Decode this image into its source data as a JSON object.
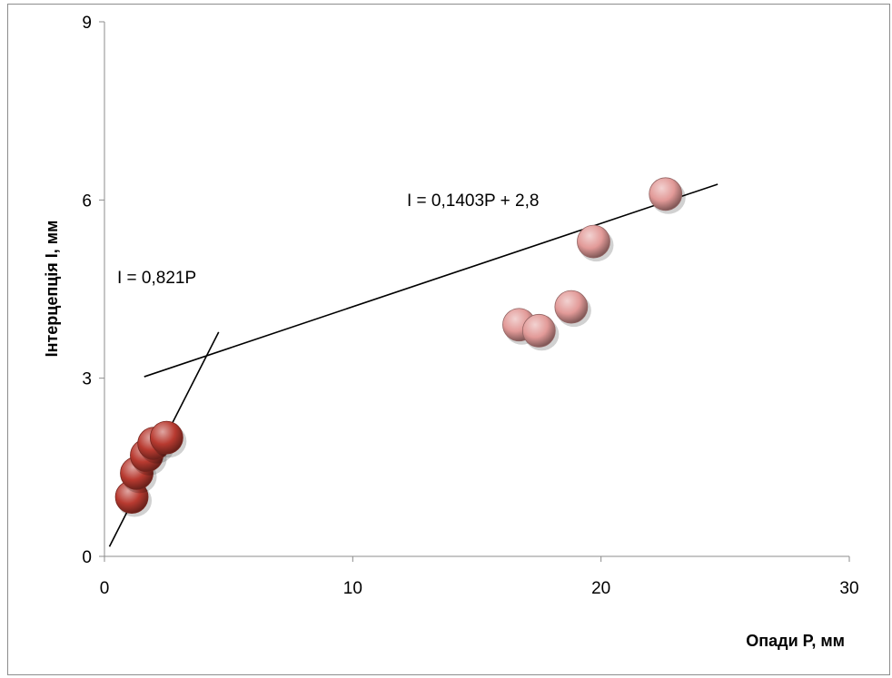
{
  "chart_data": {
    "type": "scatter",
    "xlabel": "Опади P, мм",
    "ylabel": "Інтерцепція I, мм",
    "xlim": [
      0,
      30
    ],
    "ylim": [
      0,
      9
    ],
    "x_ticks": [
      "0",
      "10",
      "20",
      "30"
    ],
    "y_ticks": [
      "0",
      "3",
      "6",
      "9"
    ],
    "grid": false,
    "series": [
      {
        "color": "#b83a30",
        "points": [
          {
            "x": 1.1,
            "y": 1.0
          },
          {
            "x": 1.3,
            "y": 1.4
          },
          {
            "x": 1.7,
            "y": 1.7
          },
          {
            "x": 2.0,
            "y": 1.9
          },
          {
            "x": 2.5,
            "y": 2.0
          }
        ]
      },
      {
        "color": "#e29a98",
        "points": [
          {
            "x": 16.7,
            "y": 3.9
          },
          {
            "x": 17.5,
            "y": 3.8
          },
          {
            "x": 18.8,
            "y": 4.2
          },
          {
            "x": 19.7,
            "y": 5.3
          },
          {
            "x": 22.6,
            "y": 6.1
          }
        ]
      }
    ],
    "trendlines": [
      {
        "equation": "I = 0,821P",
        "slope": 0.821,
        "intercept": 0,
        "x_range": [
          0.2,
          4.6
        ]
      },
      {
        "equation": "I = 0,1403P + 2,8",
        "slope": 0.1403,
        "intercept": 2.8,
        "x_range": [
          1.6,
          24.7
        ]
      }
    ]
  }
}
